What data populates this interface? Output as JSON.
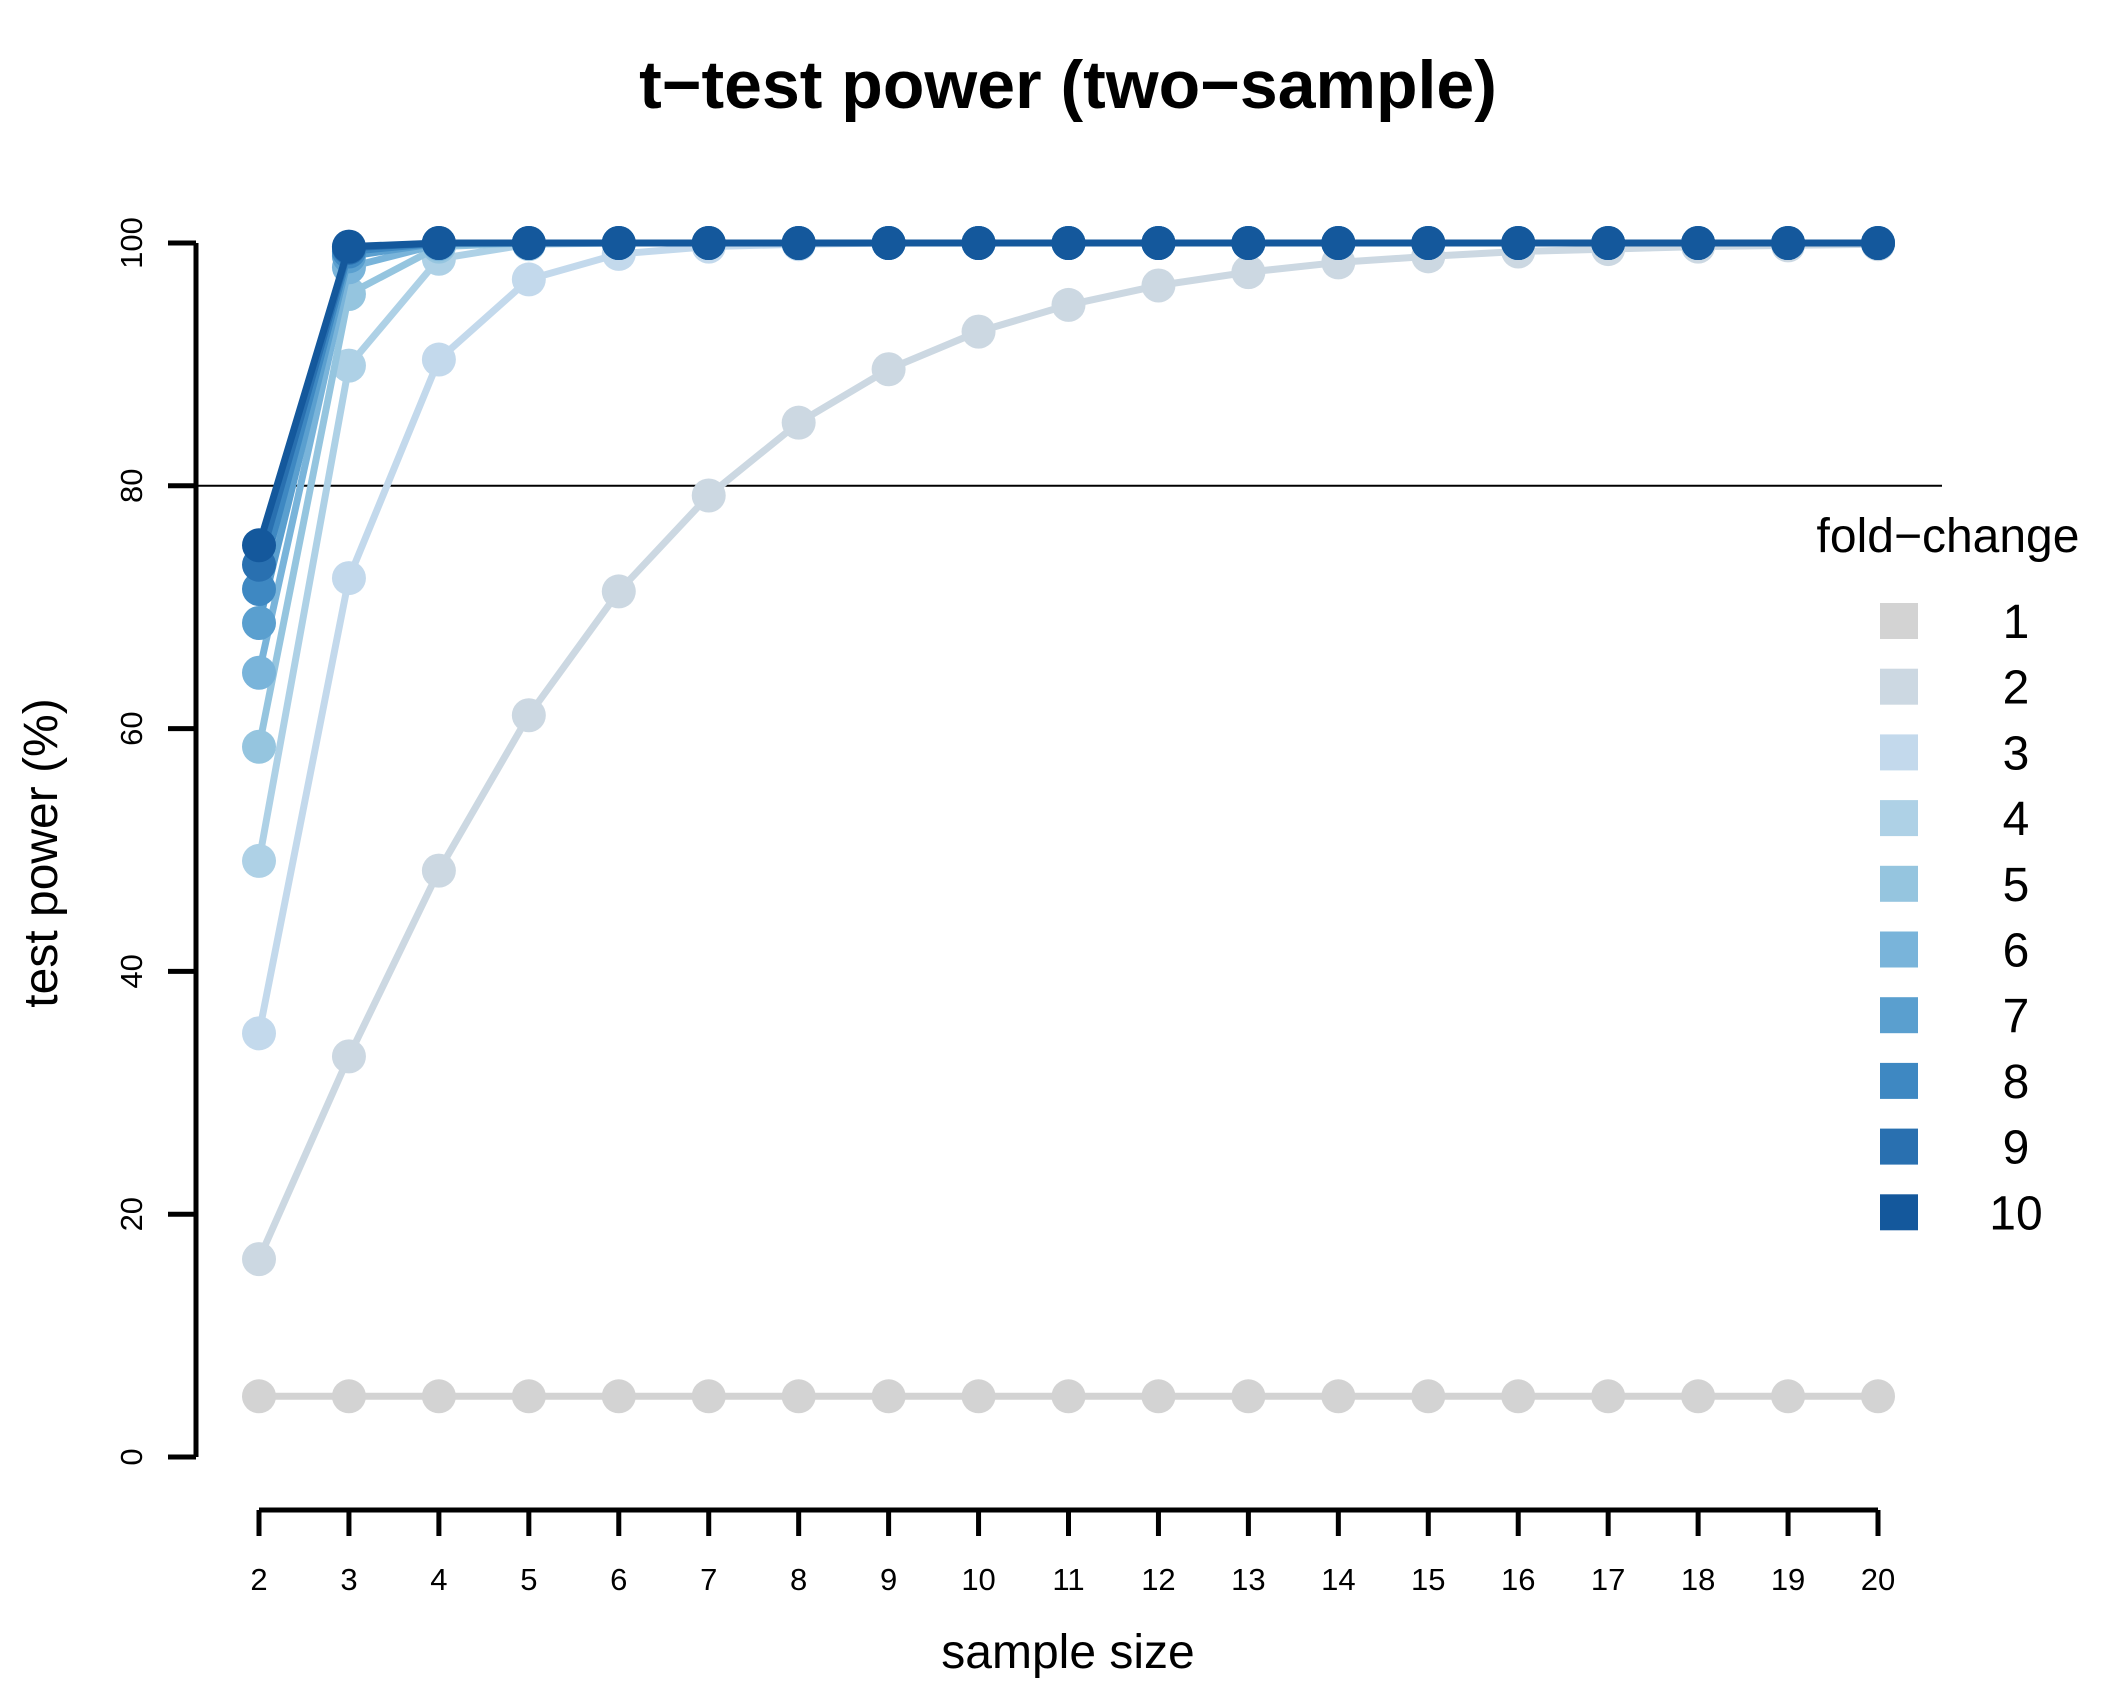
{
  "chart_data": {
    "type": "line",
    "title": "t−test power (two−sample)",
    "xlabel": "sample size",
    "ylabel": "test power (%)",
    "x": [
      2,
      3,
      4,
      5,
      6,
      7,
      8,
      9,
      10,
      11,
      12,
      13,
      14,
      15,
      16,
      17,
      18,
      19,
      20
    ],
    "xlim": [
      2,
      20
    ],
    "ylim": [
      0,
      100
    ],
    "y_ticks": [
      0,
      20,
      40,
      60,
      80,
      100
    ],
    "reference_line_y": 80,
    "grid": false,
    "legend": {
      "title": "fold−change",
      "placement": "right"
    },
    "series": [
      {
        "name": "1",
        "color": "#d3d3d3",
        "values": [
          5,
          5,
          5,
          5,
          5,
          5,
          5,
          5,
          5,
          5,
          5,
          5,
          5,
          5,
          5,
          5,
          5,
          5,
          5
        ]
      },
      {
        "name": "2",
        "color": "#ccd8e2",
        "values": [
          16.3,
          33,
          48.3,
          61.1,
          71.3,
          79.2,
          85.2,
          89.6,
          92.7,
          94.9,
          96.5,
          97.6,
          98.4,
          98.9,
          99.3,
          99.5,
          99.7,
          99.8,
          99.9
        ]
      },
      {
        "name": "3",
        "color": "#c3d9ec",
        "values": [
          34.9,
          72.4,
          90.4,
          97,
          99.1,
          99.7,
          99.9,
          100,
          100,
          100,
          100,
          100,
          100,
          100,
          100,
          100,
          100,
          100,
          100
        ]
      },
      {
        "name": "4",
        "color": "#aed1e6",
        "values": [
          49.1,
          89.9,
          98.7,
          99.9,
          100,
          100,
          100,
          100,
          100,
          100,
          100,
          100,
          100,
          100,
          100,
          100,
          100,
          100,
          100
        ]
      },
      {
        "name": "5",
        "color": "#95c5df",
        "values": [
          58.5,
          95.8,
          99.7,
          100,
          100,
          100,
          100,
          100,
          100,
          100,
          100,
          100,
          100,
          100,
          100,
          100,
          100,
          100,
          100
        ]
      },
      {
        "name": "6",
        "color": "#79b4da",
        "values": [
          64.6,
          98,
          99.9,
          100,
          100,
          100,
          100,
          100,
          100,
          100,
          100,
          100,
          100,
          100,
          100,
          100,
          100,
          100,
          100
        ]
      },
      {
        "name": "7",
        "color": "#5a9fcf",
        "values": [
          68.7,
          98.9,
          100,
          100,
          100,
          100,
          100,
          100,
          100,
          100,
          100,
          100,
          100,
          100,
          100,
          100,
          100,
          100,
          100
        ]
      },
      {
        "name": "8",
        "color": "#3e88c2",
        "values": [
          71.5,
          99.3,
          100,
          100,
          100,
          100,
          100,
          100,
          100,
          100,
          100,
          100,
          100,
          100,
          100,
          100,
          100,
          100,
          100
        ]
      },
      {
        "name": "9",
        "color": "#2970b0",
        "values": [
          73.5,
          99.6,
          100,
          100,
          100,
          100,
          100,
          100,
          100,
          100,
          100,
          100,
          100,
          100,
          100,
          100,
          100,
          100,
          100
        ]
      },
      {
        "name": "10",
        "color": "#14589c",
        "values": [
          75.1,
          99.7,
          100,
          100,
          100,
          100,
          100,
          100,
          100,
          100,
          100,
          100,
          100,
          100,
          100,
          100,
          100,
          100,
          100
        ]
      }
    ]
  }
}
